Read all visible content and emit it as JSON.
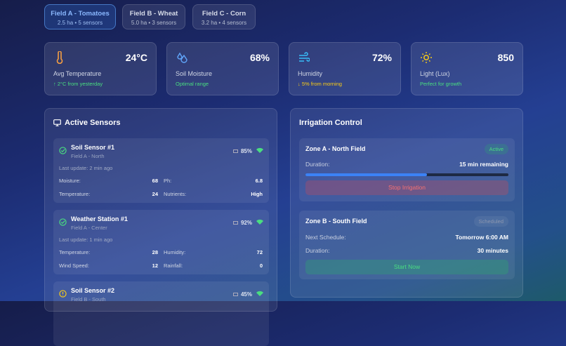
{
  "field_tabs": [
    {
      "title": "Field A - Tomatoes",
      "sub": "2.5 ha • 5 sensors",
      "active": true
    },
    {
      "title": "Field B - Wheat",
      "sub": "5.0 ha • 3 sensors",
      "active": false
    },
    {
      "title": "Field C - Corn",
      "sub": "3.2 ha • 4 sensors",
      "active": false
    }
  ],
  "stats": [
    {
      "icon": "thermometer-icon",
      "value": "24°C",
      "label": "Avg Temperature",
      "note": "↑ 2°C from yesterday",
      "note_color": "#4ade80"
    },
    {
      "icon": "droplets-icon",
      "value": "68%",
      "label": "Soil Moisture",
      "note": "Optimal range",
      "note_color": "#4ade80"
    },
    {
      "icon": "wind-icon",
      "value": "72%",
      "label": "Humidity",
      "note": "↓ 5% from morning",
      "note_color": "#facc15"
    },
    {
      "icon": "sun-icon",
      "value": "850",
      "label": "Light (Lux)",
      "note": "Perfect for growth",
      "note_color": "#4ade80"
    }
  ],
  "sensors_panel": {
    "title": "Active Sensors",
    "icon": "monitor-icon",
    "sensors": [
      {
        "name": "Soil Sensor #1",
        "location": "Field A - North",
        "status": "ok",
        "battery": "85%",
        "update": "Last update: 2 min ago",
        "readings": [
          [
            "Moisture:",
            "68"
          ],
          [
            "Ph:",
            "6.8"
          ],
          [
            "Temperature:",
            "24"
          ],
          [
            "Nutrients:",
            "High"
          ]
        ]
      },
      {
        "name": "Weather Station #1",
        "location": "Field A - Center",
        "status": "ok",
        "battery": "92%",
        "update": "Last update: 1 min ago",
        "readings": [
          [
            "Temperature:",
            "28"
          ],
          [
            "Humidity:",
            "72"
          ],
          [
            "Wind Speed:",
            "12"
          ],
          [
            "Rainfall:",
            "0"
          ]
        ]
      },
      {
        "name": "Soil Sensor #2",
        "location": "Field B - South",
        "status": "warning",
        "battery": "45%"
      }
    ]
  },
  "irrigation": {
    "title": "Irrigation Control",
    "zones": [
      {
        "name": "Zone A - North Field",
        "badge": "Active",
        "duration_label": "Duration:",
        "duration": "15 min remaining",
        "progress": 0.6,
        "button": "Stop Irrigation"
      },
      {
        "name": "Zone B - South Field",
        "badge": "Scheduled",
        "next_label": "Next Schedule:",
        "next": "Tomorrow 6:00 AM",
        "duration_label": "Duration:",
        "duration": "30 minutes",
        "button": "Start Now"
      }
    ]
  }
}
